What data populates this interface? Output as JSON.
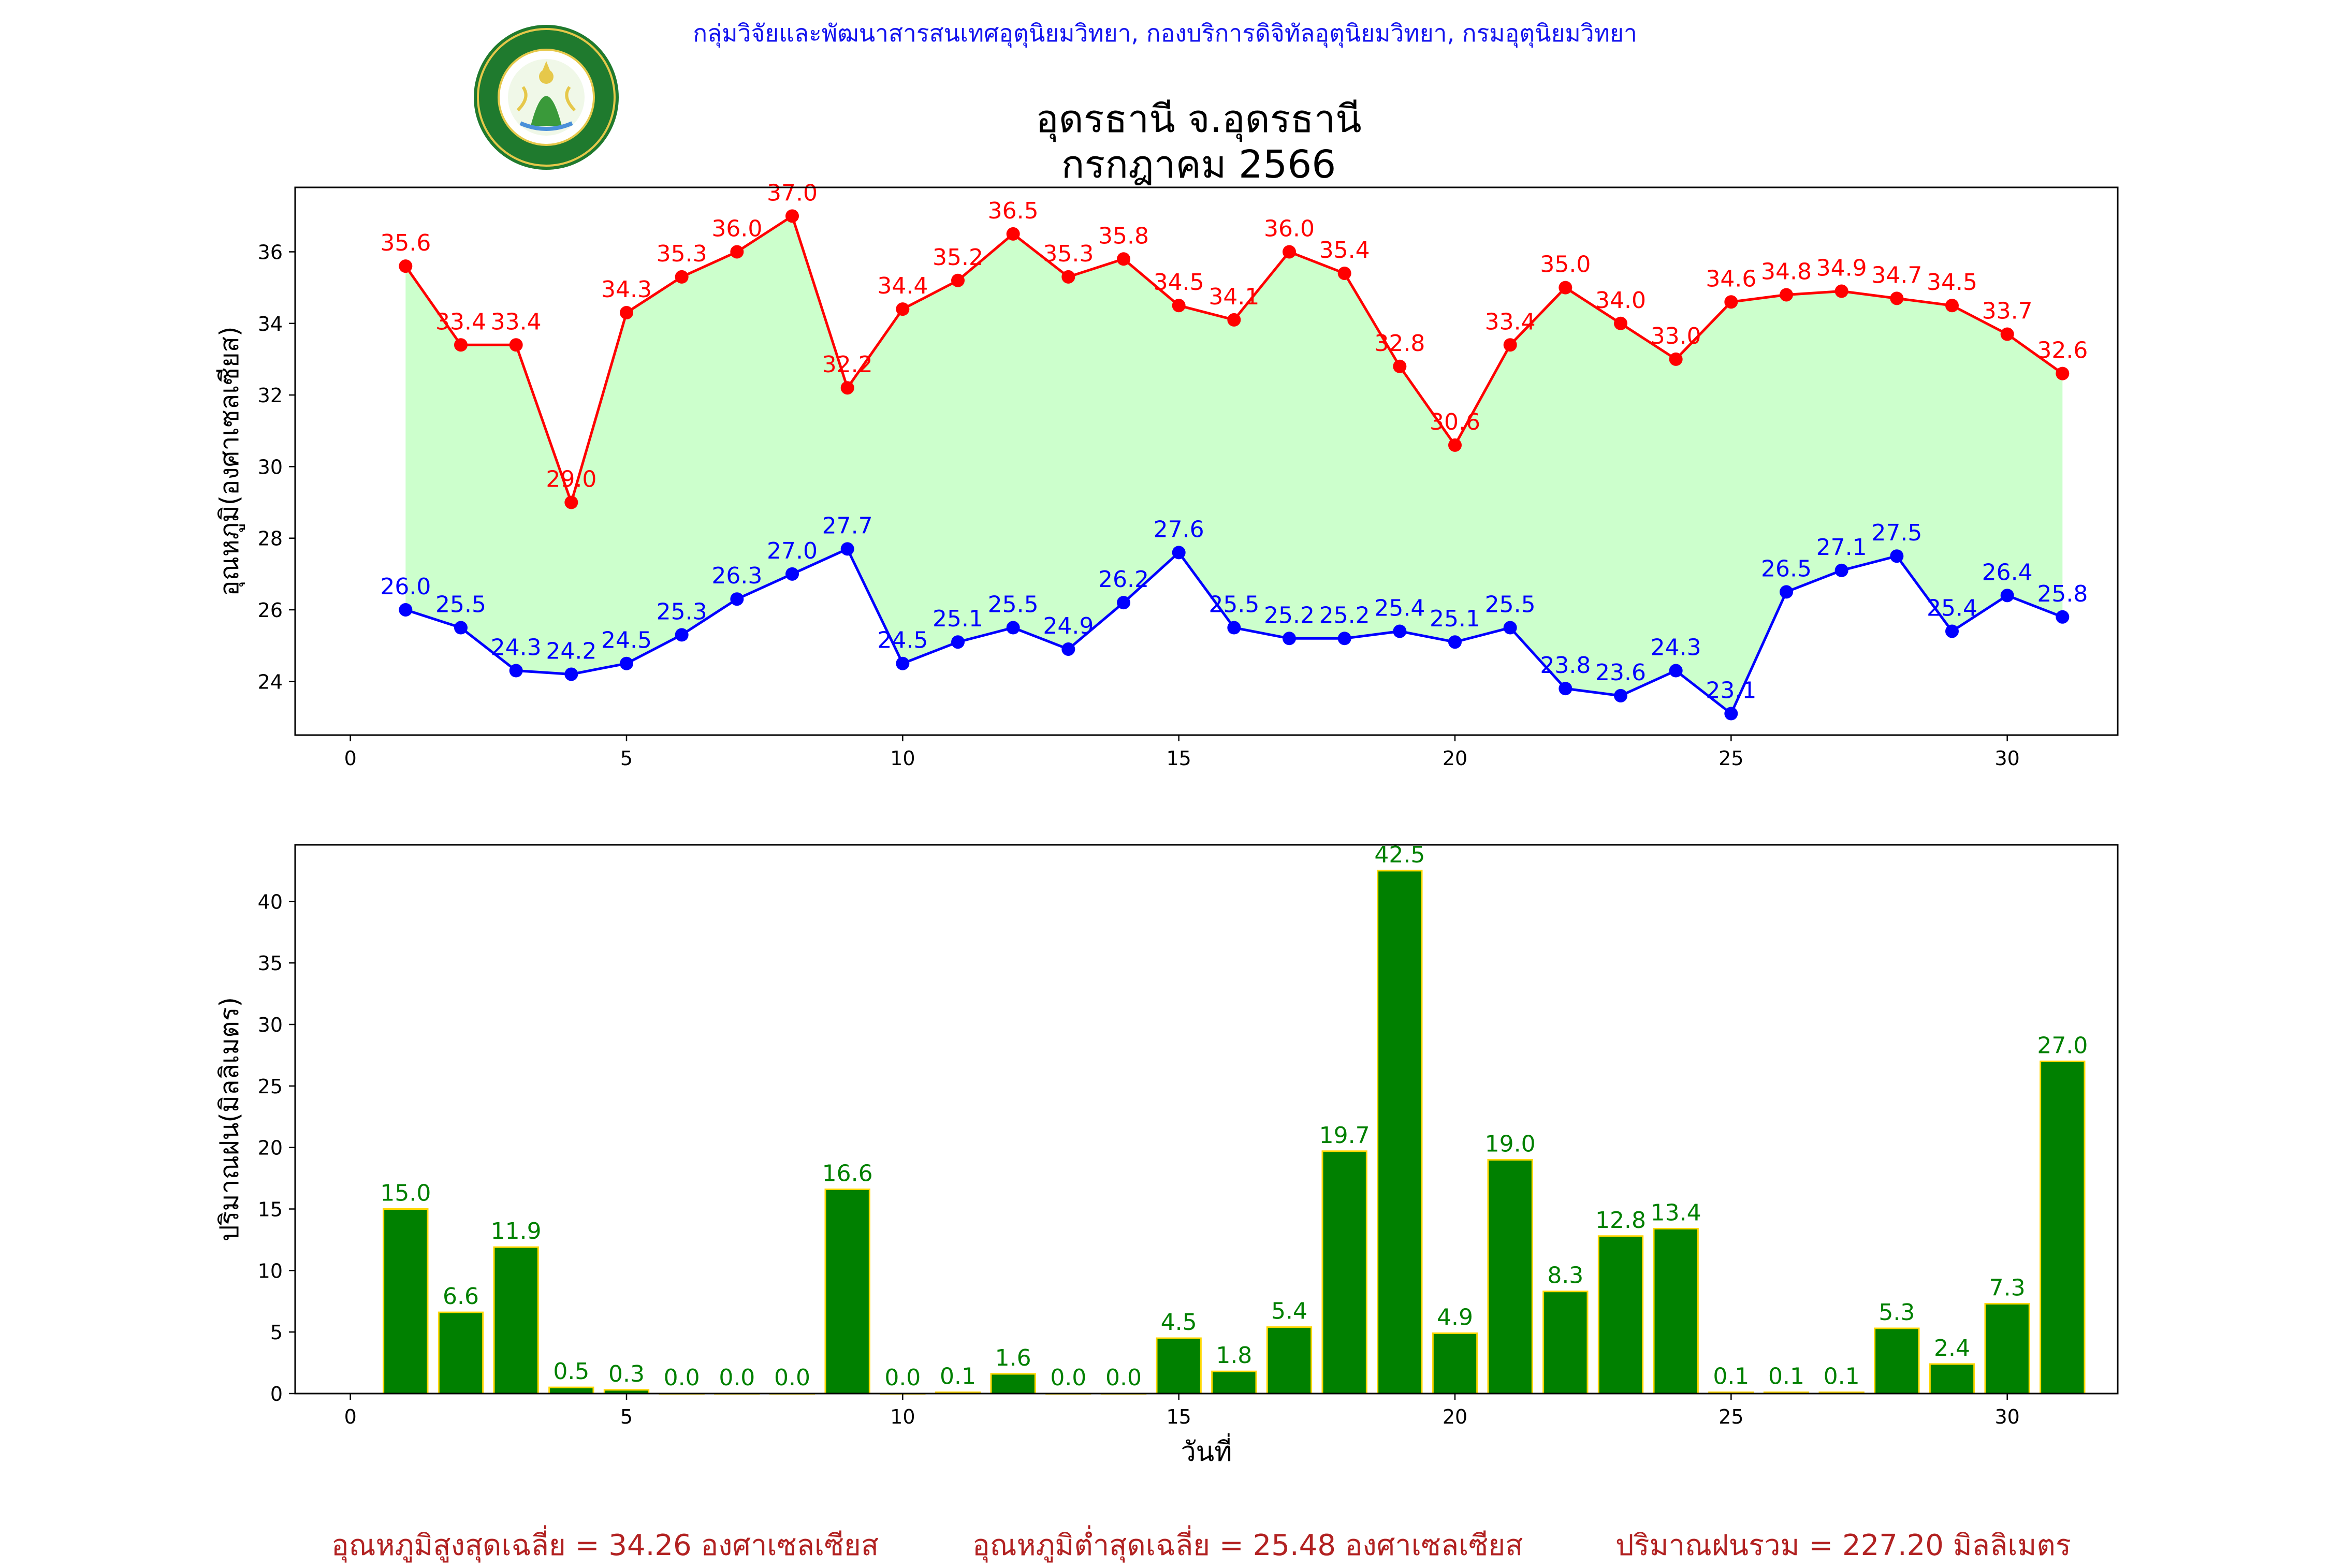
{
  "header": {
    "agency": "กลุ่มวิจัยและพัฒนาสารสนเทศอุตุนิยมวิทยา, กองบริการดิจิทัลอุตุนิยมวิทยา, กรมอุตุนิยมวิทยา",
    "station": "อุดรธานี จ.อุดรธานี",
    "month": "กรกฎาคม 2566",
    "logo_top_text": "กรมอุตุนิยมวิทยา",
    "logo_bottom_text": "METEOROLOGICAL DEPARTMENT"
  },
  "colors": {
    "max_line": "#ff0000",
    "min_line": "#0000ff",
    "fill": "#ccffcc",
    "bar_fill": "#008000",
    "bar_edge": "#ffd700",
    "bar_label": "#008000",
    "summary": "#b22222",
    "agency": "#1515ee"
  },
  "chart_data": [
    {
      "type": "line",
      "ylabel": "อุณหภูมิ(องศาเซลเซียส)",
      "xlabel": "",
      "xlim": [
        -1,
        32
      ],
      "ylim": [
        22.5,
        37.8
      ],
      "xticks": [
        0,
        5,
        10,
        15,
        20,
        25,
        30
      ],
      "yticks": [
        24,
        26,
        28,
        30,
        32,
        34,
        36
      ],
      "grid": false,
      "fill_between": true,
      "x": [
        1,
        2,
        3,
        4,
        5,
        6,
        7,
        8,
        9,
        10,
        11,
        12,
        13,
        14,
        15,
        16,
        17,
        18,
        19,
        20,
        21,
        22,
        23,
        24,
        25,
        26,
        27,
        28,
        29,
        30,
        31
      ],
      "series": [
        {
          "key": "max",
          "values": [
            35.6,
            33.4,
            33.4,
            29.0,
            34.3,
            35.3,
            36.0,
            37.0,
            32.2,
            34.4,
            35.2,
            36.5,
            35.3,
            35.8,
            34.5,
            34.1,
            36.0,
            35.4,
            32.8,
            30.6,
            33.4,
            35.0,
            34.0,
            33.0,
            34.6,
            34.8,
            34.9,
            34.7,
            34.5,
            33.7,
            32.6
          ]
        },
        {
          "key": "min",
          "values": [
            26.0,
            25.5,
            24.3,
            24.2,
            24.5,
            25.3,
            26.3,
            27.0,
            27.7,
            24.5,
            25.1,
            25.5,
            24.9,
            26.2,
            27.6,
            25.5,
            25.2,
            25.2,
            25.4,
            25.1,
            25.5,
            23.8,
            23.6,
            24.3,
            23.1,
            26.5,
            27.1,
            27.5,
            25.4,
            26.4,
            25.8
          ]
        }
      ]
    },
    {
      "type": "bar",
      "ylabel": "ปริมาณฝน(มิลลิเมตร)",
      "xlabel": "วันที่",
      "xlim": [
        -1,
        32
      ],
      "ylim": [
        0,
        44.6
      ],
      "xticks": [
        0,
        5,
        10,
        15,
        20,
        25,
        30
      ],
      "yticks": [
        0,
        5,
        10,
        15,
        20,
        25,
        30,
        35,
        40
      ],
      "grid": false,
      "x": [
        1,
        2,
        3,
        4,
        5,
        6,
        7,
        8,
        9,
        10,
        11,
        12,
        13,
        14,
        15,
        16,
        17,
        18,
        19,
        20,
        21,
        22,
        23,
        24,
        25,
        26,
        27,
        28,
        29,
        30,
        31
      ],
      "values": [
        15.0,
        6.6,
        11.9,
        0.5,
        0.3,
        0.0,
        0.0,
        0.0,
        16.6,
        0.0,
        0.1,
        1.6,
        0.0,
        0.0,
        4.5,
        1.8,
        5.4,
        19.7,
        42.5,
        4.9,
        19.0,
        8.3,
        12.8,
        13.4,
        0.1,
        0.1,
        0.1,
        5.3,
        2.4,
        7.3,
        27.0
      ]
    }
  ],
  "summary": {
    "avg_max": "อุณหภูมิสูงสุดเฉลี่ย = 34.26 องศาเซลเซียส",
    "avg_min": "อุณหภูมิต่ำสุดเฉลี่ย = 25.48 องศาเซลเซียส",
    "total_rain": "ปริมาณฝนรวม = 227.20 มิลลิเมตร"
  }
}
